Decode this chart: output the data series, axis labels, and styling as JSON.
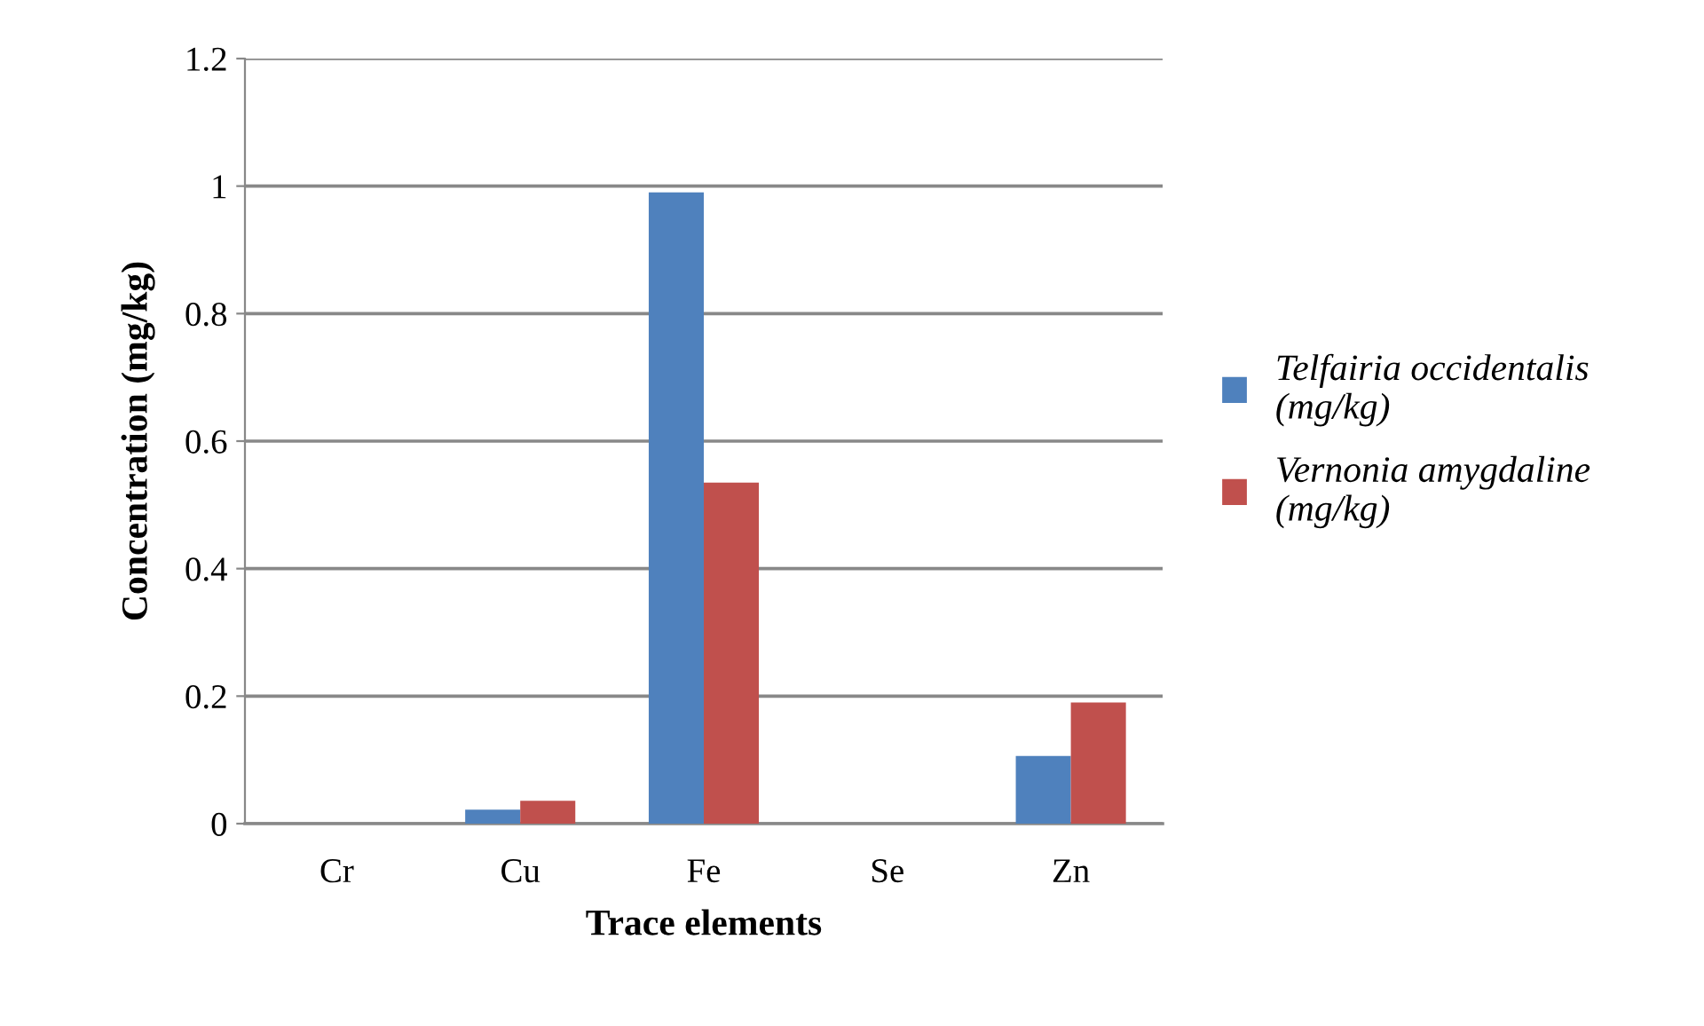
{
  "chart_data": {
    "type": "bar",
    "xlabel": "Trace elements",
    "ylabel": "Concentration (mg/kg)",
    "categories": [
      "Cr",
      "Cu",
      "Fe",
      "Se",
      "Zn"
    ],
    "series": [
      {
        "name": "Telfairia occidentalis (mg/kg)",
        "color": "#4f81bd",
        "values": [
          0,
          0.022,
          0.99,
          0,
          0.106
        ]
      },
      {
        "name": "Vernonia amygdaline (mg/kg)",
        "color": "#c0504d",
        "values": [
          0,
          0.036,
          0.535,
          0,
          0.19
        ]
      }
    ],
    "ylim": [
      0,
      1.2
    ],
    "yticks": [
      0,
      0.2,
      0.4,
      0.6,
      0.8,
      1,
      1.2
    ],
    "grid": "y",
    "legend": "right"
  }
}
